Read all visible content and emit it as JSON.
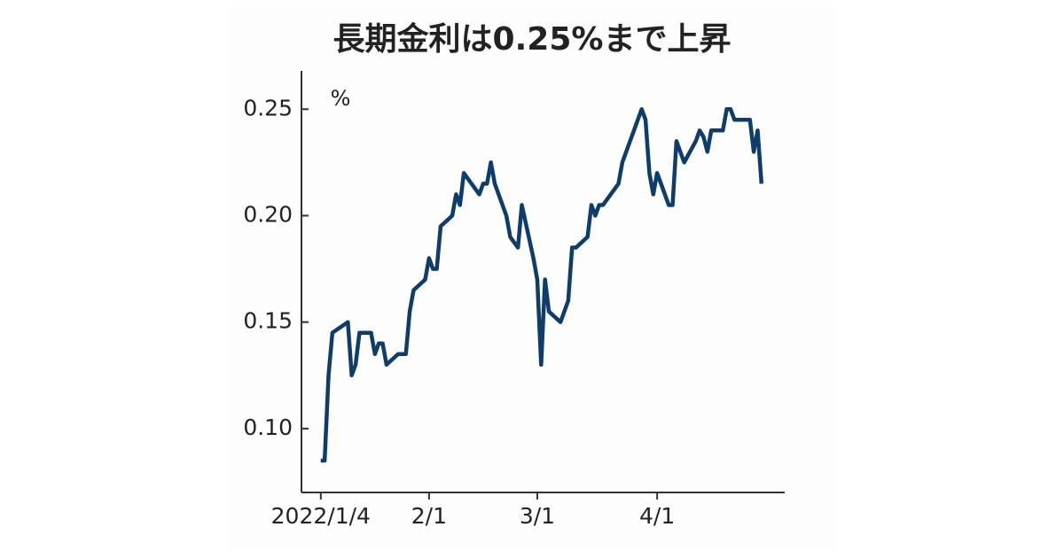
{
  "chart_data": {
    "type": "line",
    "title": "長期金利は0.25%まで上昇",
    "y_unit": "%",
    "x": [
      "2022-01-04",
      "2022-01-05",
      "2022-01-06",
      "2022-01-07",
      "2022-01-11",
      "2022-01-12",
      "2022-01-13",
      "2022-01-14",
      "2022-01-17",
      "2022-01-18",
      "2022-01-19",
      "2022-01-20",
      "2022-01-21",
      "2022-01-24",
      "2022-01-25",
      "2022-01-26",
      "2022-01-27",
      "2022-01-28",
      "2022-01-31",
      "2022-02-01",
      "2022-02-02",
      "2022-02-03",
      "2022-02-04",
      "2022-02-07",
      "2022-02-08",
      "2022-02-09",
      "2022-02-10",
      "2022-02-14",
      "2022-02-15",
      "2022-02-16",
      "2022-02-17",
      "2022-02-18",
      "2022-02-21",
      "2022-02-22",
      "2022-02-24",
      "2022-02-25",
      "2022-02-28",
      "2022-03-01",
      "2022-03-02",
      "2022-03-03",
      "2022-03-04",
      "2022-03-07",
      "2022-03-08",
      "2022-03-09",
      "2022-03-10",
      "2022-03-11",
      "2022-03-14",
      "2022-03-15",
      "2022-03-16",
      "2022-03-17",
      "2022-03-18",
      "2022-03-22",
      "2022-03-23",
      "2022-03-24",
      "2022-03-25",
      "2022-03-28",
      "2022-03-29",
      "2022-03-30",
      "2022-03-31",
      "2022-04-01",
      "2022-04-04",
      "2022-04-05",
      "2022-04-06",
      "2022-04-07",
      "2022-04-08",
      "2022-04-11",
      "2022-04-12",
      "2022-04-13",
      "2022-04-14",
      "2022-04-15",
      "2022-04-18",
      "2022-04-19",
      "2022-04-20",
      "2022-04-21",
      "2022-04-22",
      "2022-04-25",
      "2022-04-26",
      "2022-04-27",
      "2022-04-28"
    ],
    "series": [
      {
        "name": "長期金利",
        "color": "#0f3d6b",
        "values": [
          0.085,
          0.085,
          0.125,
          0.145,
          0.15,
          0.125,
          0.13,
          0.145,
          0.145,
          0.135,
          0.14,
          0.14,
          0.13,
          0.135,
          0.135,
          0.135,
          0.155,
          0.165,
          0.17,
          0.18,
          0.175,
          0.175,
          0.195,
          0.2,
          0.21,
          0.205,
          0.22,
          0.21,
          0.215,
          0.215,
          0.225,
          0.215,
          0.2,
          0.19,
          0.185,
          0.205,
          0.18,
          0.17,
          0.13,
          0.17,
          0.155,
          0.15,
          0.155,
          0.16,
          0.185,
          0.185,
          0.19,
          0.205,
          0.2,
          0.205,
          0.205,
          0.215,
          0.225,
          0.23,
          0.235,
          0.25,
          0.245,
          0.22,
          0.21,
          0.22,
          0.205,
          0.205,
          0.235,
          0.23,
          0.225,
          0.235,
          0.24,
          0.237,
          0.23,
          0.24,
          0.24,
          0.25,
          0.25,
          0.245,
          0.245,
          0.245,
          0.23,
          0.24,
          0.215
        ]
      }
    ],
    "xlim": [
      "2021-12-30",
      "2022-05-04"
    ],
    "xticks": [
      {
        "value": "2022-01-04",
        "label": "2022/1/4"
      },
      {
        "value": "2022-02-01",
        "label": "2/1"
      },
      {
        "value": "2022-03-01",
        "label": "3/1"
      },
      {
        "value": "2022-04-01",
        "label": "4/1"
      }
    ],
    "ylim": [
      0.07,
      0.268
    ],
    "yticks": [
      {
        "value": 0.1,
        "label": "0.10"
      },
      0.15,
      {
        "value": 0.2,
        "label": "0.20"
      },
      0.25
    ],
    "grid": false
  }
}
